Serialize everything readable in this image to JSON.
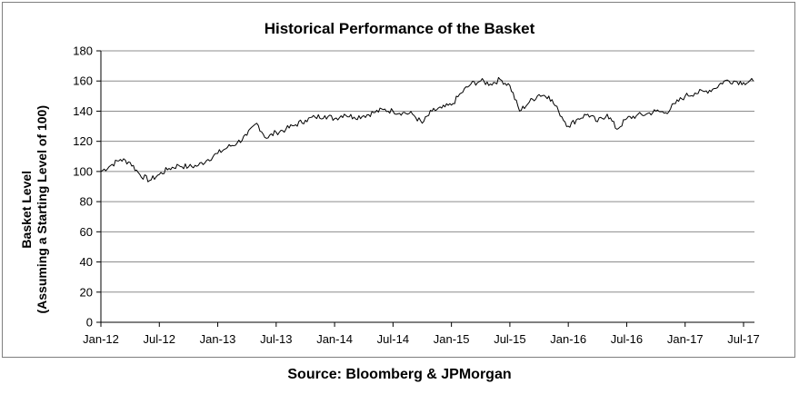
{
  "chart_data": {
    "type": "line",
    "title": "Historical Performance of the Basket",
    "ylabel_line1": "Basket Level",
    "ylabel_line2": "(Assuming a Starting Level of 100)",
    "xlabel": "",
    "source": "Source: Bloomberg & JPMorgan",
    "ylim": [
      0,
      180
    ],
    "yticks": [
      0,
      20,
      40,
      60,
      80,
      100,
      120,
      140,
      160,
      180
    ],
    "xlim": [
      "2012-01",
      "2017-08"
    ],
    "xticks": [
      "Jan-12",
      "Jul-12",
      "Jan-13",
      "Jul-13",
      "Jan-14",
      "Jul-14",
      "Jan-15",
      "Jul-15",
      "Jan-16",
      "Jul-16",
      "Jan-17",
      "Jul-17"
    ],
    "grid": "horizontal",
    "line_color": "#000000",
    "series": [
      {
        "name": "",
        "x": [
          "2012-01",
          "2012-02",
          "2012-03",
          "2012-04",
          "2012-05",
          "2012-06",
          "2012-07",
          "2012-08",
          "2012-09",
          "2012-10",
          "2012-11",
          "2012-12",
          "2013-01",
          "2013-02",
          "2013-03",
          "2013-04",
          "2013-05",
          "2013-06",
          "2013-07",
          "2013-08",
          "2013-09",
          "2013-10",
          "2013-11",
          "2013-12",
          "2014-01",
          "2014-02",
          "2014-03",
          "2014-04",
          "2014-05",
          "2014-06",
          "2014-07",
          "2014-08",
          "2014-09",
          "2014-10",
          "2014-11",
          "2014-12",
          "2015-01",
          "2015-02",
          "2015-03",
          "2015-04",
          "2015-05",
          "2015-06",
          "2015-07",
          "2015-08",
          "2015-09",
          "2015-10",
          "2015-11",
          "2015-12",
          "2016-01",
          "2016-02",
          "2016-03",
          "2016-04",
          "2016-05",
          "2016-06",
          "2016-07",
          "2016-08",
          "2016-09",
          "2016-10",
          "2016-11",
          "2016-12",
          "2017-01",
          "2017-02",
          "2017-03",
          "2017-04",
          "2017-05",
          "2017-06",
          "2017-07",
          "2017-08"
        ],
        "values": [
          100,
          104,
          108,
          106,
          98,
          94,
          98,
          102,
          104,
          103,
          104,
          108,
          112,
          116,
          119,
          124,
          132,
          122,
          126,
          128,
          131,
          134,
          136,
          137,
          135,
          138,
          136,
          137,
          139,
          141,
          140,
          139,
          138,
          132,
          140,
          142,
          144,
          152,
          158,
          160,
          158,
          161,
          157,
          140,
          146,
          151,
          150,
          140,
          130,
          135,
          138,
          133,
          138,
          128,
          135,
          137,
          138,
          140,
          139,
          145,
          150,
          152,
          153,
          155,
          160,
          160,
          159,
          160
        ]
      }
    ]
  }
}
